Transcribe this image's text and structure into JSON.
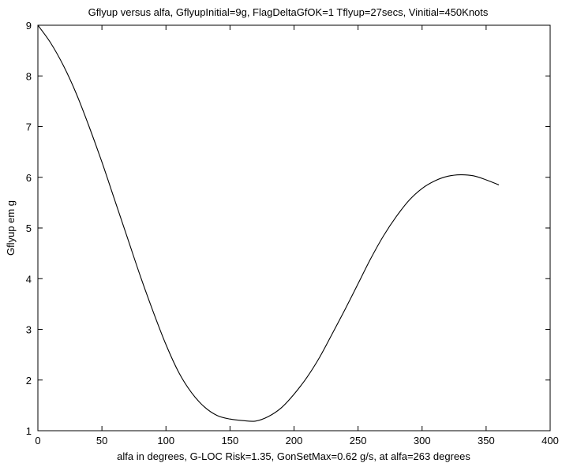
{
  "chart_data": {
    "type": "line",
    "title": "Gflyup versus alfa, GflyupInitial=9g, FlagDeltaGfOK=1 Tflyup=27secs, Vinitial=450Knots",
    "xlabel": "alfa in degrees, G-LOC Risk=1.35, GonSetMax=0.62 g/s, at alfa=263 degrees",
    "ylabel": "Gflyup em g",
    "xlim": [
      0,
      400
    ],
    "ylim": [
      1,
      9
    ],
    "xticks": [
      0,
      50,
      100,
      150,
      200,
      250,
      300,
      350,
      400
    ],
    "yticks": [
      1,
      2,
      3,
      4,
      5,
      6,
      7,
      8,
      9
    ],
    "grid": false,
    "line_color": "#000000",
    "series": [
      {
        "x": [
          0,
          10,
          20,
          30,
          40,
          50,
          60,
          70,
          80,
          90,
          100,
          110,
          120,
          130,
          140,
          150,
          160,
          170,
          180,
          190,
          200,
          210,
          220,
          230,
          240,
          250,
          260,
          270,
          280,
          290,
          300,
          310,
          320,
          330,
          340,
          350,
          360
        ],
        "y": [
          9.0,
          8.65,
          8.2,
          7.65,
          7.0,
          6.3,
          5.55,
          4.8,
          4.05,
          3.35,
          2.7,
          2.15,
          1.75,
          1.47,
          1.3,
          1.23,
          1.2,
          1.19,
          1.28,
          1.45,
          1.72,
          2.05,
          2.45,
          2.92,
          3.4,
          3.9,
          4.4,
          4.85,
          5.23,
          5.55,
          5.78,
          5.93,
          6.02,
          6.05,
          6.03,
          5.95,
          5.85
        ]
      }
    ]
  }
}
